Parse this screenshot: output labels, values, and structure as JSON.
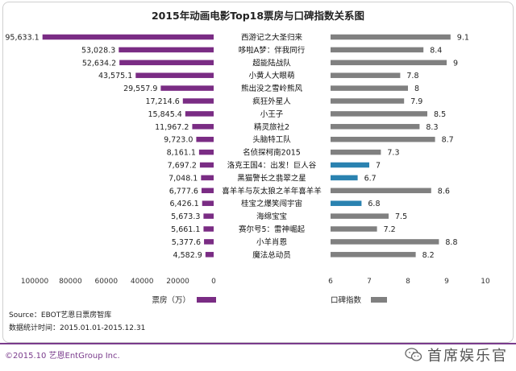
{
  "chart_data": {
    "type": "bar",
    "title": "2015年动画电影Top18票房与口碑指数关系图",
    "categories": [
      "西游记之大圣归来",
      "哆啦A梦：伴我同行",
      "超能陆战队",
      "小黄人大眼萌",
      "熊出没之雪岭熊风",
      "疯狂外星人",
      "小王子",
      "精灵旅社2",
      "头脑特工队",
      "名侦探柯南2015",
      "洛克王国4：出发！巨人谷",
      "黑猫警长之翡翠之星",
      "喜羊羊与灰太狼之羊年喜羊羊",
      "桂宝之爆笑闯宇宙",
      "海绵宝宝",
      "赛尔号5：雷神崛起",
      "小羊肖恩",
      "魔法总动员"
    ],
    "left_labels": [
      "95,633.1",
      "53,028.3",
      "52,634.2",
      "43,575.1",
      "29,557.9",
      "17,214.6",
      "15,845.4",
      "11,967.2",
      "9,723.0",
      "8,161.1",
      "7,697.2",
      "7,048.1",
      "6,777.6",
      "6,426.1",
      "5,673.3",
      "5,661.1",
      "5,377.6",
      "4,582.9"
    ],
    "series": [
      {
        "name": "票房（万）",
        "color": "#7a2c84",
        "values": [
          95633.1,
          53028.3,
          52634.2,
          43575.1,
          29557.9,
          17214.6,
          15845.4,
          11967.2,
          9723.0,
          8161.1,
          7697.2,
          7048.1,
          6777.6,
          6426.1,
          5673.3,
          5661.1,
          5377.6,
          4582.9
        ]
      },
      {
        "name": "口碑指数",
        "color": "#808080",
        "values": [
          9.1,
          8.4,
          9,
          7.8,
          8,
          7.9,
          8.5,
          8.3,
          8.7,
          7.3,
          7,
          6.7,
          8.6,
          6.8,
          7.5,
          7.2,
          8.8,
          8.2
        ]
      }
    ],
    "right_labels": [
      "9.1",
      "8.4",
      "9",
      "7.8",
      "8",
      "7.9",
      "8.5",
      "8.3",
      "8.7",
      "7.3",
      "7",
      "6.7",
      "8.6",
      "6.8",
      "7.5",
      "7.2",
      "8.8",
      "8.2"
    ],
    "highlight_indices": [
      10,
      11,
      13
    ],
    "highlight_color": "#2a82b0",
    "left_axis": {
      "ticks": [
        "100000",
        "80000",
        "60000",
        "40000",
        "20000",
        "0"
      ],
      "range": [
        0,
        100000
      ]
    },
    "right_axis": {
      "ticks": [
        "6",
        "7",
        "8",
        "9",
        "10"
      ],
      "range": [
        6,
        10
      ]
    },
    "legend": {
      "box_office": "票房（万）",
      "rating": "口碑指数"
    },
    "grid": false
  },
  "source": "Source：EBOT艺恩日票房智库",
  "period": "数据统计时间：2015.01.01-2015.12.31",
  "copyright": "©2015.10 艺恩EntGroup Inc.",
  "wechat_name": "首席娱乐官"
}
